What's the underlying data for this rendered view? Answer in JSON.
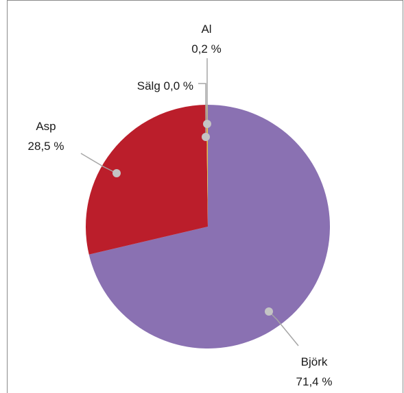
{
  "chart_data": {
    "type": "pie",
    "slices": [
      {
        "name": "Björk",
        "value": 71.4,
        "label": "71,4 %",
        "color": "#8a71b2"
      },
      {
        "name": "Asp",
        "value": 28.5,
        "label": "28,5 %",
        "color": "#bb1e2b"
      },
      {
        "name": "Sälg",
        "value": 0.0,
        "label": "0,0 %",
        "color": "#d9ab3a"
      },
      {
        "name": "Al",
        "value": 0.2,
        "label": "0,2 %",
        "color": "#e6c24a"
      }
    ],
    "label_style": "callout-lines"
  }
}
